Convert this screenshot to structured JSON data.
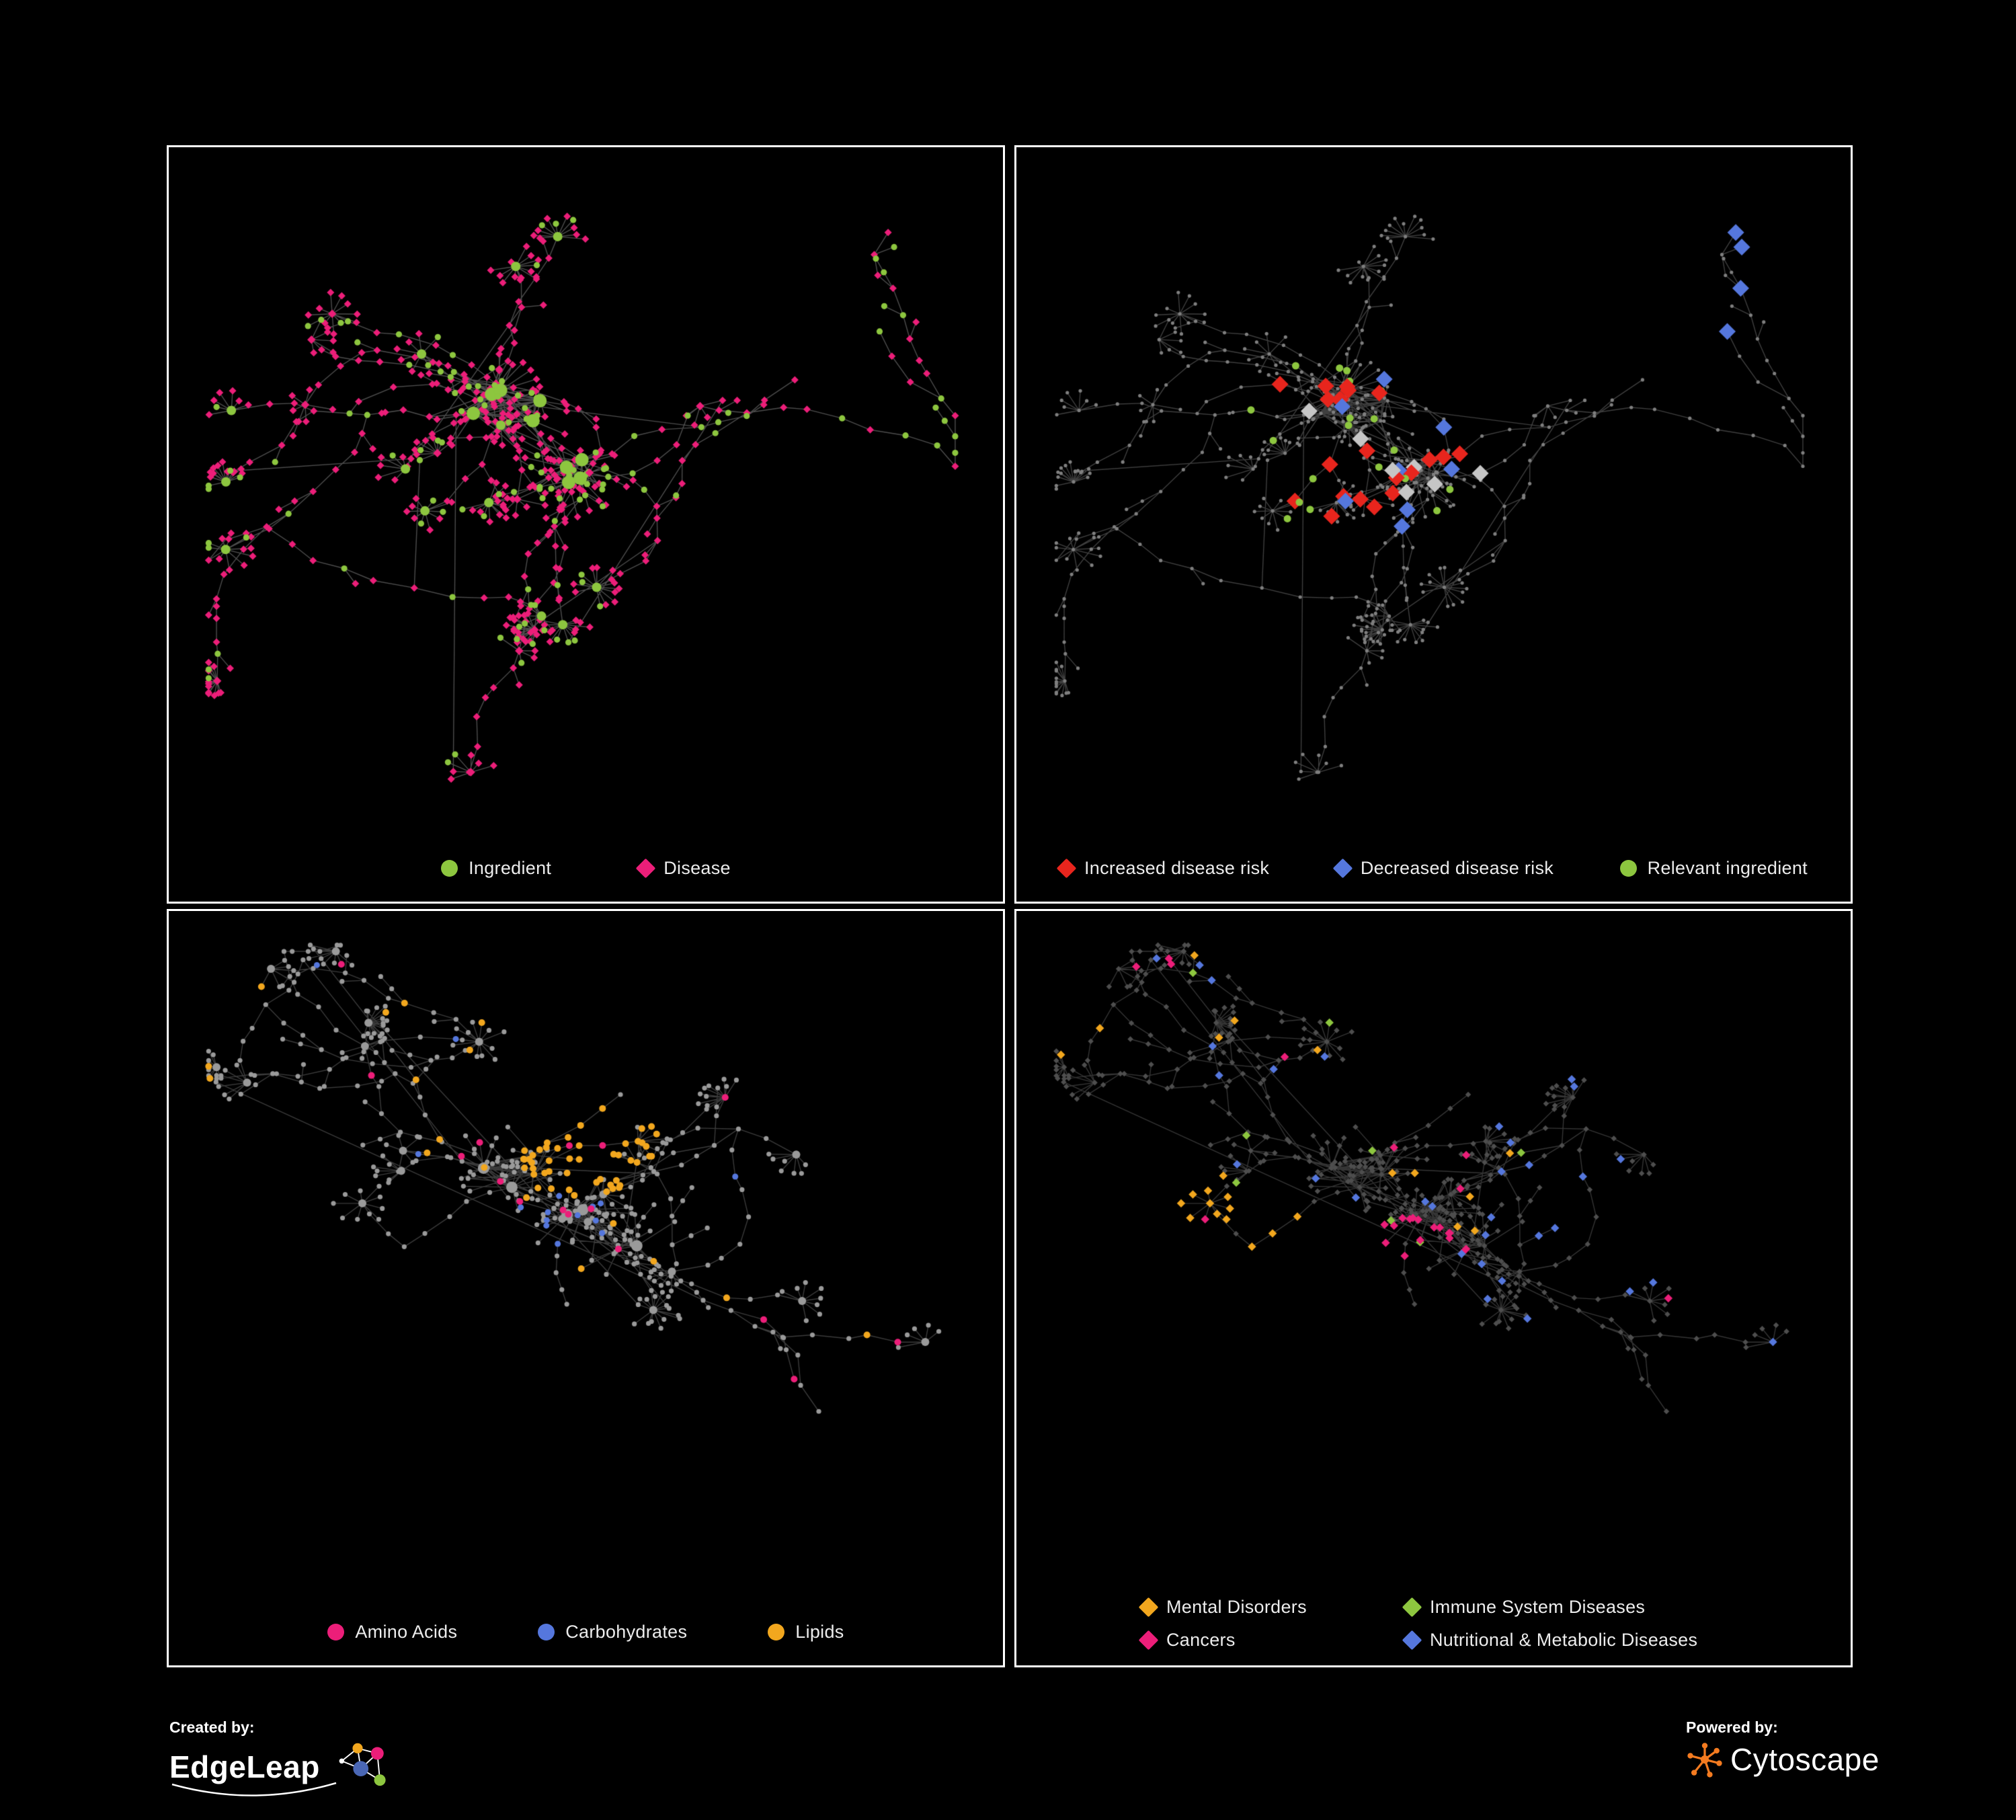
{
  "palette": {
    "green": "#8dc63f",
    "magenta": "#ec1e79",
    "red": "#e8251d",
    "blue": "#5577dd",
    "orange": "#f2a71e",
    "light_gray": "#c6c6c6",
    "edge_gray": "#8c8c8c",
    "node_gray": "#9a9a9a",
    "dark_gray": "#4e4e4e",
    "dim_gray": "#7f7f7f"
  },
  "panels": [
    {
      "name": "ingredient-disease-network",
      "legend": [
        {
          "label": "Ingredient",
          "shape": "circle",
          "color": "#8dc63f"
        },
        {
          "label": "Disease",
          "shape": "diamond",
          "color": "#ec1e79"
        }
      ]
    },
    {
      "name": "disease-risk-network",
      "legend": [
        {
          "label": "Increased disease risk",
          "shape": "diamond",
          "color": "#e8251d"
        },
        {
          "label": "Decreased disease risk",
          "shape": "diamond",
          "color": "#5577dd"
        },
        {
          "label": "Relevant ingredient",
          "shape": "circle",
          "color": "#8dc63f"
        }
      ]
    },
    {
      "name": "macronutrient-network",
      "legend": [
        {
          "label": "Amino Acids",
          "shape": "circle",
          "color": "#ec1e79"
        },
        {
          "label": "Carbohydrates",
          "shape": "circle",
          "color": "#5577dd"
        },
        {
          "label": "Lipids",
          "shape": "circle",
          "color": "#f2a71e"
        }
      ]
    },
    {
      "name": "disease-category-network",
      "legend": [
        {
          "label": "Mental Disorders",
          "shape": "diamond",
          "color": "#f2a71e"
        },
        {
          "label": "Immune System Diseases",
          "shape": "diamond",
          "color": "#8dc63f"
        },
        {
          "label": "Cancers",
          "shape": "diamond",
          "color": "#ec1e79"
        },
        {
          "label": "Nutritional & Metabolic Diseases",
          "shape": "diamond",
          "color": "#5577dd"
        }
      ]
    }
  ],
  "footer": {
    "created_by_label": "Created by:",
    "created_by_name": "EdgeLeap",
    "powered_by_label": "Powered by:",
    "powered_by_name": "Cytoscape",
    "cytoscape_orange": "#f47b20"
  }
}
